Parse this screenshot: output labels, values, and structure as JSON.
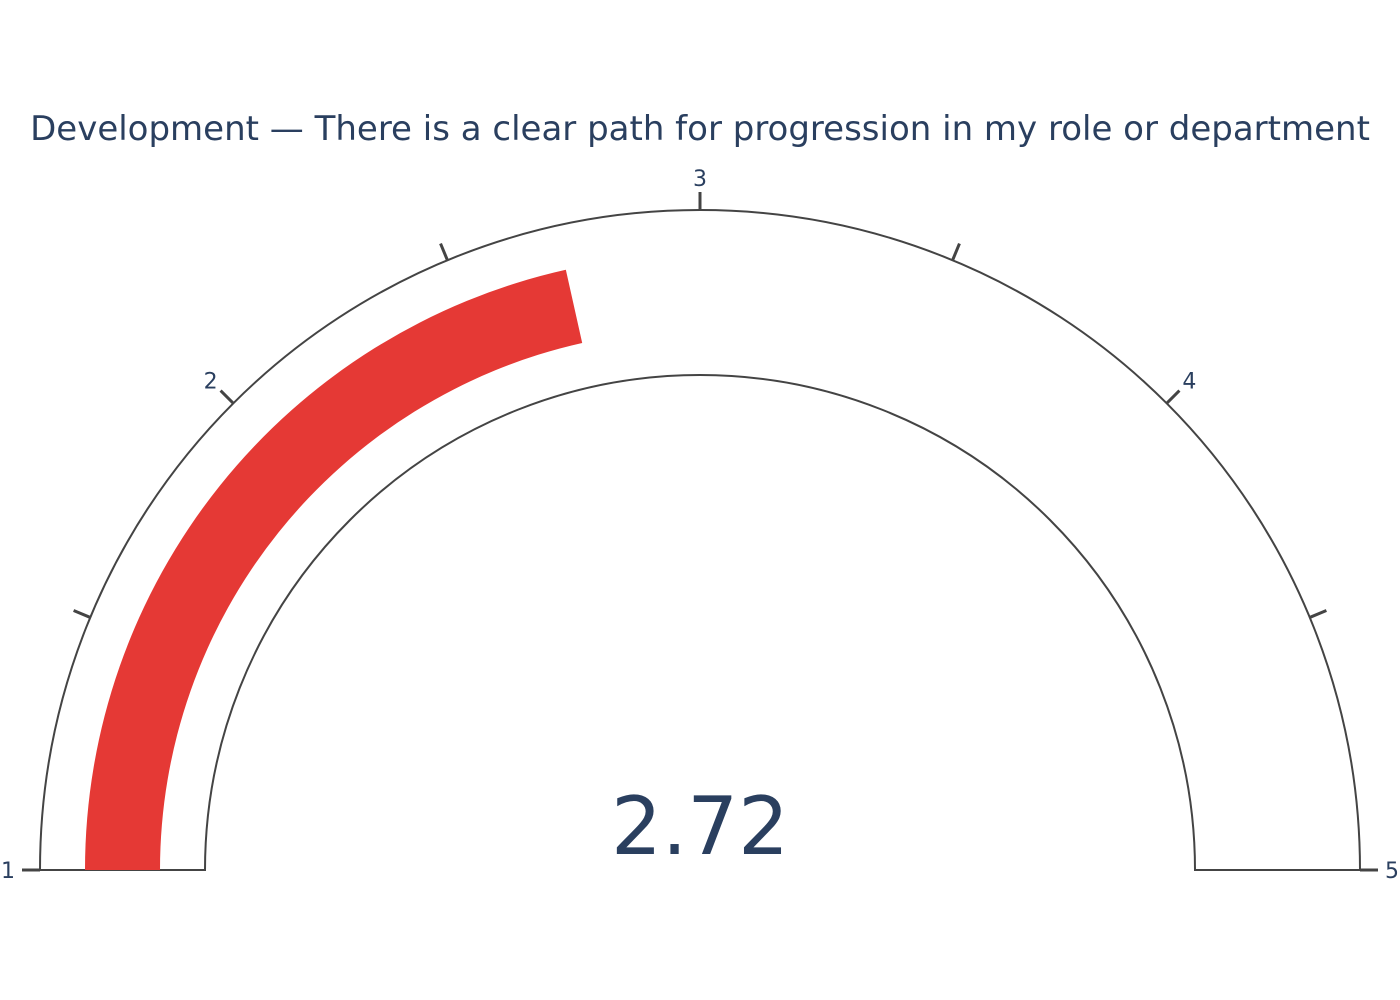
{
  "chart_data": {
    "type": "gauge",
    "title": "Development — There is a clear path for progression in my role or department",
    "value": 2.72,
    "value_label": "2.72",
    "range": [
      1,
      5
    ],
    "major_ticks": [
      1,
      2,
      3,
      4,
      5
    ],
    "minor_ticks": [
      1.5,
      2.5,
      3.5,
      4.5
    ],
    "tick_labels": [
      "1",
      "2",
      "3",
      "4",
      "5"
    ],
    "colors": {
      "bar": "#e53935",
      "text": "#2a3f5f",
      "outline": "#444444",
      "background": "#ffffff"
    }
  }
}
